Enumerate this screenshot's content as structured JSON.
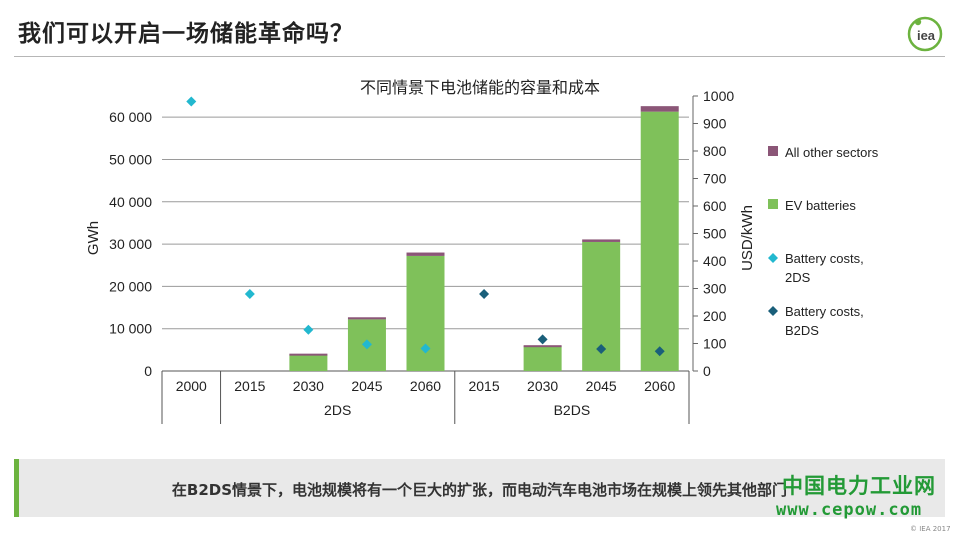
{
  "slide": {
    "title": "我们可以开启一场储能革命吗？",
    "logo_text": "iea",
    "banner": "在B2DS情景下，电池规模将有一个巨大的扩张，而电动汽车电池市场在规模上领先其他部门",
    "watermark_cn": "中国电力工业网",
    "watermark_url": "www.cepow.com",
    "copyright": "© IEA 2017"
  },
  "colors": {
    "all_other": "#8b5677",
    "ev": "#7fc15a",
    "cost_2ds": "#22b8cf",
    "cost_b2ds": "#1a5f7a",
    "accent": "#6cb33f"
  },
  "chart_data": {
    "type": "bar",
    "title": "不同情景下电池储能的容量和成本",
    "ylabel": "GWh",
    "y2label": "USD/kWh",
    "ylim": [
      0,
      65000
    ],
    "y2lim": [
      0,
      1000
    ],
    "yticks": [
      "0",
      "10 000",
      "20 000",
      "30 000",
      "40 000",
      "50 000",
      "60 000"
    ],
    "y2ticks": [
      "0",
      "100",
      "200",
      "300",
      "400",
      "500",
      "600",
      "700",
      "800",
      "900",
      "1000"
    ],
    "categories": [
      "2000",
      "2015",
      "2030",
      "2045",
      "2060",
      "2015",
      "2030",
      "2045",
      "2060"
    ],
    "groups": [
      {
        "label": "",
        "span": 1
      },
      {
        "label": "2DS",
        "span": 4
      },
      {
        "label": "B2DS",
        "span": 4
      }
    ],
    "series": [
      {
        "name": "EV batteries",
        "kind": "bar",
        "values": [
          0,
          0,
          3900,
          12200,
          27200,
          0,
          5800,
          30500,
          61300
        ]
      },
      {
        "name": "All other sectors",
        "kind": "bar",
        "values": [
          0,
          0,
          200,
          500,
          800,
          0,
          300,
          600,
          1300
        ]
      },
      {
        "name": "Battery costs, 2DS",
        "kind": "point",
        "axis": "right",
        "values": [
          980,
          280,
          150,
          97,
          82,
          null,
          null,
          null,
          null
        ]
      },
      {
        "name": "Battery costs, B2DS",
        "kind": "point",
        "axis": "right",
        "values": [
          null,
          null,
          null,
          null,
          null,
          280,
          115,
          80,
          72
        ]
      }
    ],
    "legend": [
      {
        "name": "All other sectors",
        "marker": "square",
        "color": "#8b5677"
      },
      {
        "name": "EV batteries",
        "marker": "square",
        "color": "#7fc15a"
      },
      {
        "name": "Battery costs, 2DS",
        "marker": "diamond",
        "color": "#22b8cf"
      },
      {
        "name": "Battery costs, B2DS",
        "marker": "diamond",
        "color": "#1a5f7a"
      }
    ],
    "legend_position": "right",
    "grid": true
  }
}
